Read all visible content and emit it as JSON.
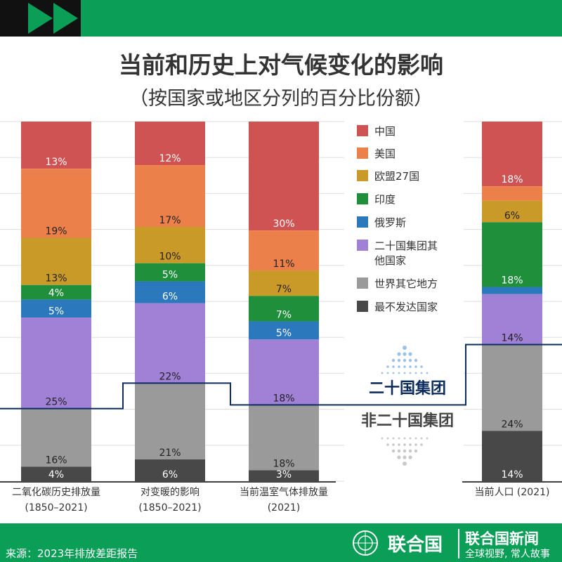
{
  "header": {
    "title": "当前和历史上对气候变化的影响",
    "subtitle": "（按国家或地区分列的百分比份额）"
  },
  "colors": {
    "中国": "#d05353",
    "美国": "#ec804a",
    "欧盟27国": "#c99a28",
    "印度": "#1f8f3c",
    "俄罗斯": "#2c78bd",
    "二十国集团其他国家": "#a081d6",
    "世界其它地方": "#9a9a9a",
    "最不发达国家": "#484848",
    "g20_line": "#0d2c5e",
    "brand_green": "#0a9e57"
  },
  "chart_data": {
    "type": "bar",
    "stacked": true,
    "title": "当前和历史上对气候变化的影响",
    "subtitle": "（按国家或地区分列的百分比份额）",
    "ylim": [
      0,
      100
    ],
    "grid": true,
    "legend_placement": "center",
    "categories": [
      [
        "二氧化碳历史排放量",
        "(1850–2021)"
      ],
      [
        "对变暖的影响",
        "(1850–2021)"
      ],
      [
        "当前温室气体排放量",
        "(2021)"
      ],
      [
        "当前人口 (2021)",
        ""
      ]
    ],
    "series": [
      {
        "name": "中国",
        "values": [
          13,
          12,
          30,
          18
        ],
        "labels": [
          "13%",
          "12%",
          "30%",
          "18%"
        ]
      },
      {
        "name": "美国",
        "values": [
          19,
          17,
          11,
          4
        ],
        "labels": [
          "19%",
          "17%",
          "11%",
          ""
        ]
      },
      {
        "name": "欧盟27国",
        "values": [
          13,
          10,
          7,
          6
        ],
        "labels": [
          "13%",
          "10%",
          "7%",
          "6%"
        ]
      },
      {
        "name": "印度",
        "values": [
          4,
          5,
          7,
          18
        ],
        "labels": [
          "4%",
          "5%",
          "7%",
          "18%"
        ]
      },
      {
        "name": "俄罗斯",
        "values": [
          5,
          6,
          5,
          2
        ],
        "labels": [
          "5%",
          "6%",
          "5%",
          ""
        ]
      },
      {
        "name": "二十国集团其他国家",
        "values": [
          25,
          22,
          18,
          14
        ],
        "labels": [
          "25%",
          "22%",
          "18%",
          "14%"
        ]
      },
      {
        "name": "世界其它地方",
        "values": [
          16,
          21,
          18,
          24
        ],
        "labels": [
          "16%",
          "21%",
          "18%",
          "24%"
        ]
      },
      {
        "name": "最不发达国家",
        "values": [
          4,
          6,
          3,
          14
        ],
        "labels": [
          "4%",
          "6%",
          "3%",
          "14%"
        ]
      }
    ],
    "annotations": {
      "g20": "二十国集团",
      "non_g20": "非二十国集团"
    }
  },
  "footer": {
    "source": "来源：2023年排放差距报告",
    "un": "联合国",
    "news": "联合国新闻",
    "slogan": "全球视野, 常人故事"
  }
}
